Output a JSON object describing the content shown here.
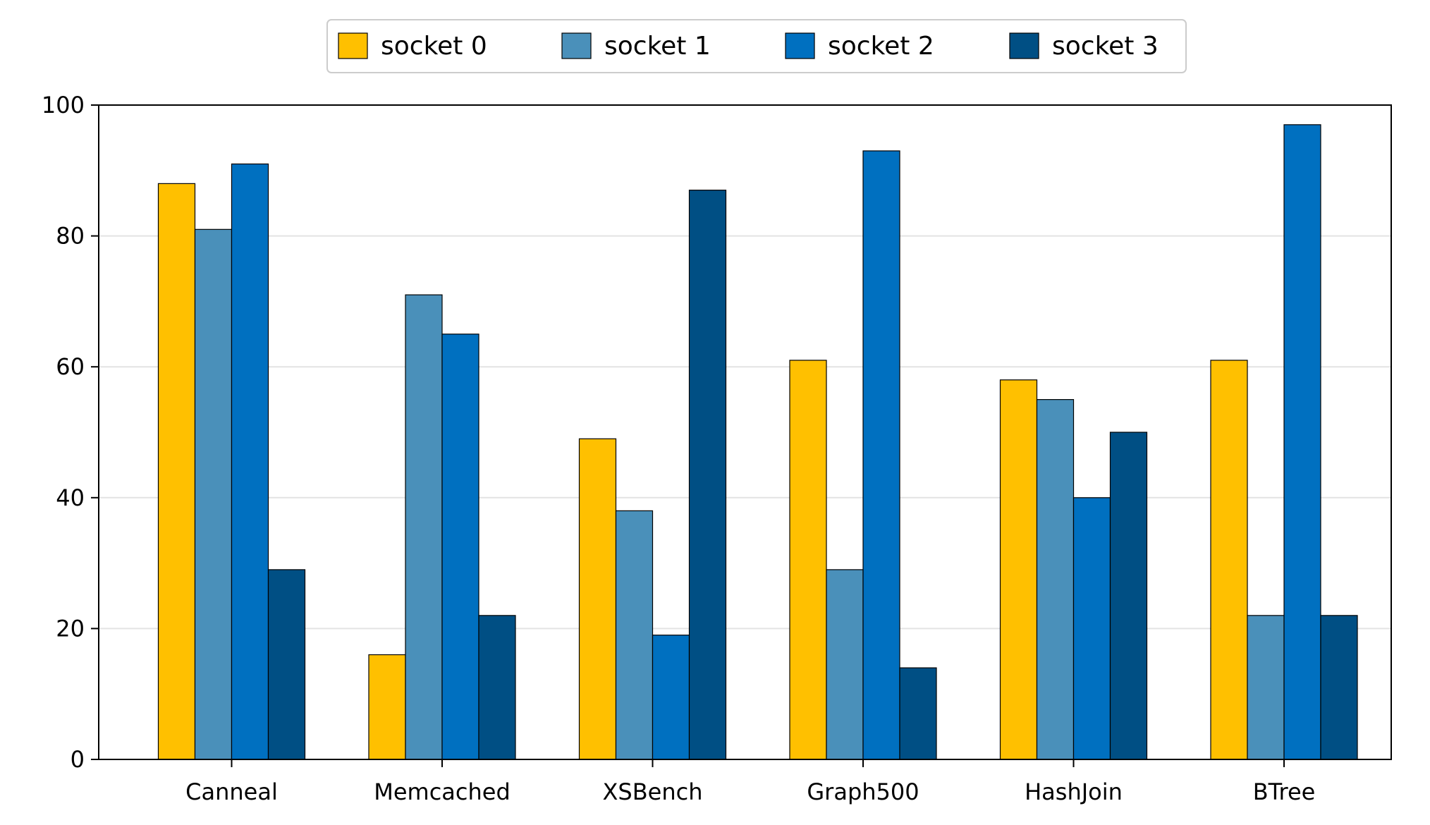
{
  "chart_data": {
    "type": "bar",
    "title": "",
    "xlabel": "",
    "ylabel": "",
    "ylim": [
      0,
      100
    ],
    "yticks": [
      0,
      20,
      40,
      60,
      80,
      100
    ],
    "grid": "horizontal",
    "legend_position": "top-center",
    "categories": [
      "Canneal",
      "Memcached",
      "XSBench",
      "Graph500",
      "HashJoin",
      "BTree"
    ],
    "series": [
      {
        "name": "socket 0",
        "color": "#FFC000",
        "values": [
          88,
          16,
          49,
          61,
          58,
          61
        ]
      },
      {
        "name": "socket 1",
        "color": "#4A90BA",
        "values": [
          81,
          71,
          38,
          29,
          55,
          22
        ]
      },
      {
        "name": "socket 2",
        "color": "#0070C0",
        "values": [
          91,
          65,
          19,
          93,
          40,
          97
        ]
      },
      {
        "name": "socket 3",
        "color": "#004F84",
        "values": [
          29,
          22,
          87,
          14,
          50,
          22
        ]
      }
    ]
  }
}
